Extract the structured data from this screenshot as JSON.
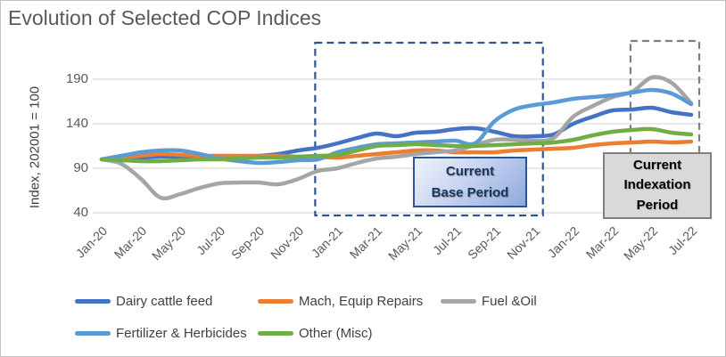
{
  "chart_data": {
    "type": "line",
    "title": "Evolution of Selected COP Indices",
    "xlabel": "",
    "ylabel": "Index, 202001 = 100",
    "ylim": [
      40,
      205
    ],
    "y_ticks": [
      40,
      90,
      140,
      190
    ],
    "grid": "horizontal",
    "legend_position": "bottom",
    "x": [
      "Jan-20",
      "Feb-20",
      "Mar-20",
      "Apr-20",
      "May-20",
      "Jun-20",
      "Jul-20",
      "Aug-20",
      "Sep-20",
      "Oct-20",
      "Nov-20",
      "Dec-20",
      "Jan-21",
      "Feb-21",
      "Mar-21",
      "Apr-21",
      "May-21",
      "Jun-21",
      "Jul-21",
      "Aug-21",
      "Sep-21",
      "Oct-21",
      "Nov-21",
      "Dec-21",
      "Jan-22",
      "Feb-22",
      "Mar-22",
      "Apr-22",
      "May-22",
      "Jun-22",
      "Jul-22"
    ],
    "x_tick_labels": [
      "Jan-20",
      "Mar-20",
      "May-20",
      "Jul-20",
      "Sep-20",
      "Nov-20",
      "Jan-21",
      "Mar-21",
      "May-21",
      "Jul-21",
      "Sep-21",
      "Nov-21",
      "Jan-22",
      "Mar-22",
      "May-22",
      "Jul-22"
    ],
    "series": [
      {
        "name": "Dairy cattle feed",
        "color": "#4472C4",
        "values": [
          100,
          101,
          102,
          103,
          103,
          103,
          103,
          103,
          104,
          106,
          110,
          113,
          118,
          124,
          129,
          126,
          130,
          131,
          134,
          135,
          131,
          126,
          126,
          128,
          140,
          148,
          155,
          156,
          158,
          153,
          150
        ]
      },
      {
        "name": "Mach, Equip Repairs",
        "color": "#ED7D31",
        "values": [
          100,
          102,
          104,
          106,
          105,
          104,
          104,
          104,
          104,
          104,
          103,
          103,
          102,
          104,
          106,
          108,
          110,
          110,
          108,
          108,
          108,
          110,
          111,
          112,
          113,
          116,
          118,
          119,
          120,
          119,
          120
        ]
      },
      {
        "name": "Fuel &Oil",
        "color": "#A5A5A5",
        "values": [
          100,
          95,
          78,
          57,
          61,
          68,
          73,
          74,
          74,
          72,
          78,
          87,
          90,
          96,
          101,
          103,
          106,
          108,
          110,
          116,
          122,
          122,
          121,
          124,
          148,
          160,
          170,
          176,
          192,
          186,
          163
        ]
      },
      {
        "name": "Fertilizer & Herbicides",
        "color": "#5B9BD5",
        "values": [
          100,
          104,
          108,
          110,
          110,
          106,
          101,
          98,
          96,
          97,
          99,
          100,
          108,
          113,
          117,
          118,
          119,
          120,
          121,
          118,
          143,
          156,
          161,
          164,
          168,
          170,
          172,
          175,
          178,
          174,
          162
        ]
      },
      {
        "name": "Other (Misc)",
        "color": "#70AD47",
        "values": [
          100,
          99,
          98,
          98,
          99,
          100,
          100,
          101,
          102,
          102,
          103,
          104,
          105,
          110,
          115,
          116,
          117,
          116,
          115,
          115,
          116,
          117,
          118,
          119,
          122,
          127,
          131,
          133,
          134,
          130,
          128
        ]
      }
    ],
    "annotations": {
      "base_period": {
        "label": "Current Base Period",
        "lines": [
          "Current",
          "Base Period"
        ],
        "x_start": "Dec-20",
        "x_end": "Nov-21",
        "box_color": "#8FAADC",
        "border_color": "#2F5496"
      },
      "indexation_period": {
        "label": "Current Indexation Period",
        "lines": [
          "Current",
          "Indexation",
          "Period"
        ],
        "x_start": "Apr-22",
        "x_end": "Jul-22",
        "box_color": "#D9D9D9",
        "border_color": "#808080"
      }
    }
  }
}
